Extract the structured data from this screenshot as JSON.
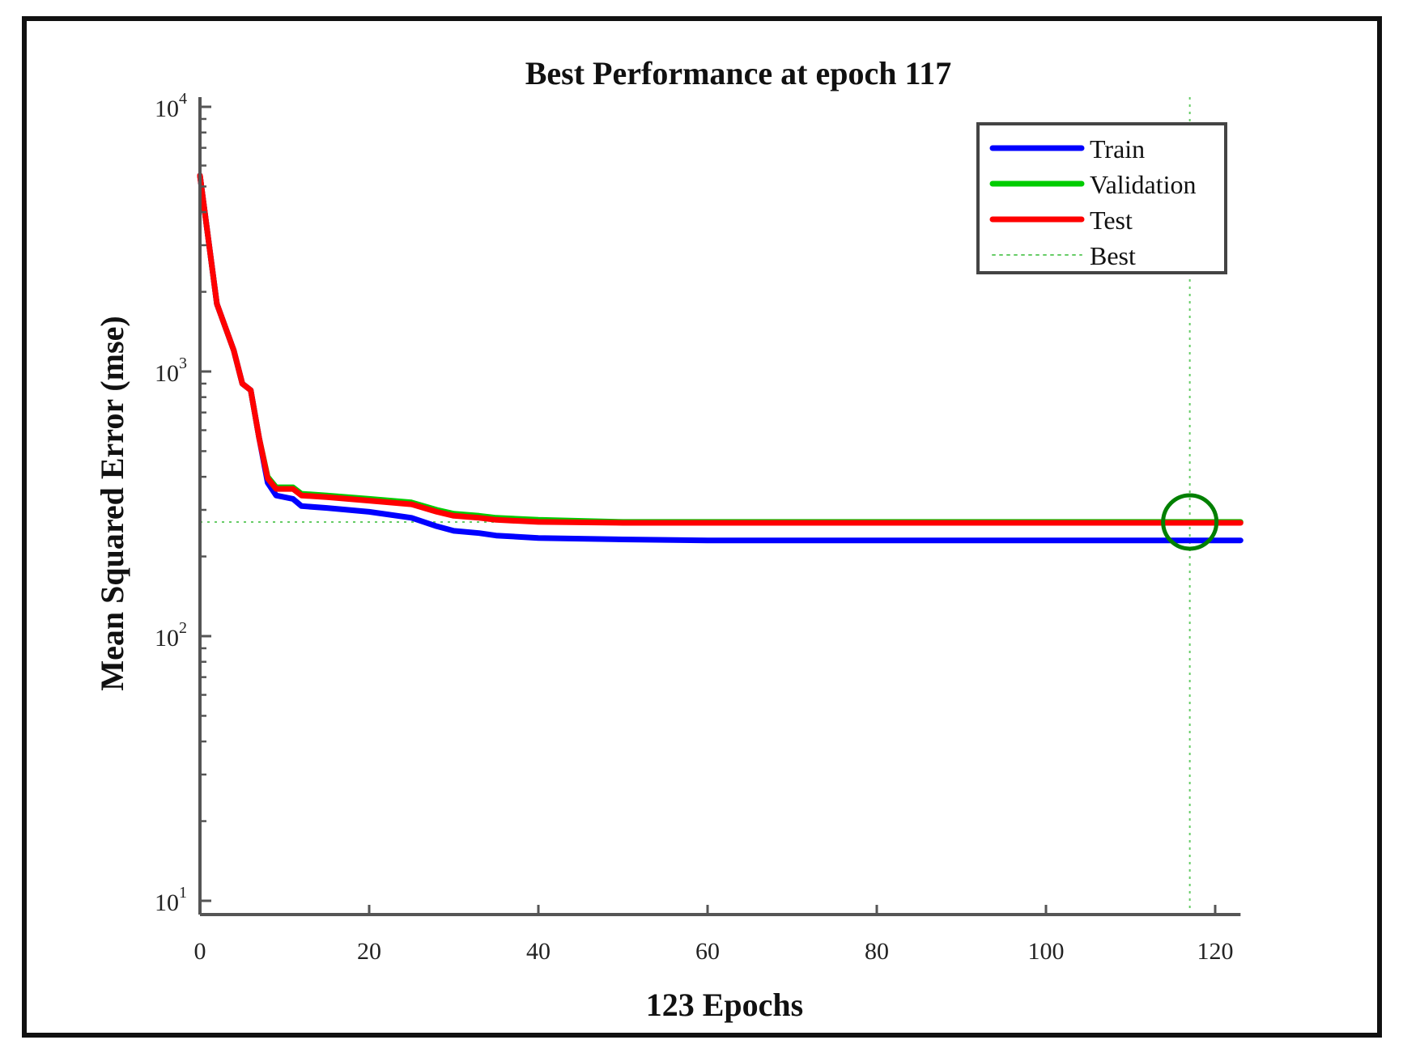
{
  "chart_data": {
    "type": "line",
    "title": "Best Performance at epoch 117",
    "xlabel": "123 Epochs",
    "ylabel": "Mean Squared Error  (mse)",
    "yscale": "log",
    "xlim": [
      0,
      123
    ],
    "ylim": [
      10,
      10000
    ],
    "x_ticks": [
      0,
      20,
      40,
      60,
      80,
      100,
      120
    ],
    "y_ticks": [
      {
        "base": "10",
        "exp": "1",
        "value": 10
      },
      {
        "base": "10",
        "exp": "2",
        "value": 100
      },
      {
        "base": "10",
        "exp": "3",
        "value": 1000
      },
      {
        "base": "10",
        "exp": "4",
        "value": 10000
      }
    ],
    "grid": false,
    "legend_position": "upper right",
    "best_epoch": 117,
    "best_value": 270,
    "series": [
      {
        "name": "Train",
        "color": "#0000ff",
        "x": [
          0,
          2,
          4,
          5,
          6,
          7,
          8,
          9,
          11,
          12,
          15,
          20,
          25,
          28,
          30,
          33,
          35,
          40,
          50,
          60,
          80,
          100,
          117,
          123
        ],
        "values": [
          5500,
          1800,
          1200,
          900,
          850,
          560,
          380,
          340,
          330,
          310,
          305,
          295,
          280,
          260,
          250,
          245,
          240,
          235,
          232,
          230,
          230,
          230,
          230,
          230
        ]
      },
      {
        "name": "Validation",
        "color": "#00cc00",
        "x": [
          0,
          2,
          4,
          5,
          6,
          7,
          8,
          9,
          11,
          12,
          15,
          20,
          25,
          28,
          30,
          33,
          35,
          40,
          50,
          60,
          80,
          100,
          117,
          123
        ],
        "values": [
          5500,
          1800,
          1200,
          900,
          850,
          560,
          400,
          365,
          365,
          345,
          340,
          330,
          320,
          300,
          290,
          285,
          280,
          275,
          270,
          270,
          270,
          270,
          270,
          270
        ]
      },
      {
        "name": "Test",
        "color": "#ff0000",
        "x": [
          0,
          2,
          4,
          5,
          6,
          7,
          8,
          9,
          11,
          12,
          15,
          20,
          25,
          28,
          30,
          33,
          35,
          40,
          50,
          60,
          80,
          100,
          117,
          123
        ],
        "values": [
          5500,
          1800,
          1200,
          900,
          850,
          560,
          395,
          360,
          360,
          340,
          335,
          325,
          315,
          295,
          285,
          280,
          275,
          270,
          268,
          268,
          268,
          268,
          268,
          268
        ]
      },
      {
        "name": "Best",
        "color": "#66cc66",
        "style": "dotted"
      }
    ]
  },
  "colors": {
    "train": "#0000ff",
    "validation": "#00cc00",
    "test": "#ff0000",
    "best": "#66cc66",
    "best_marker": "#008000",
    "axis": "#555555"
  }
}
